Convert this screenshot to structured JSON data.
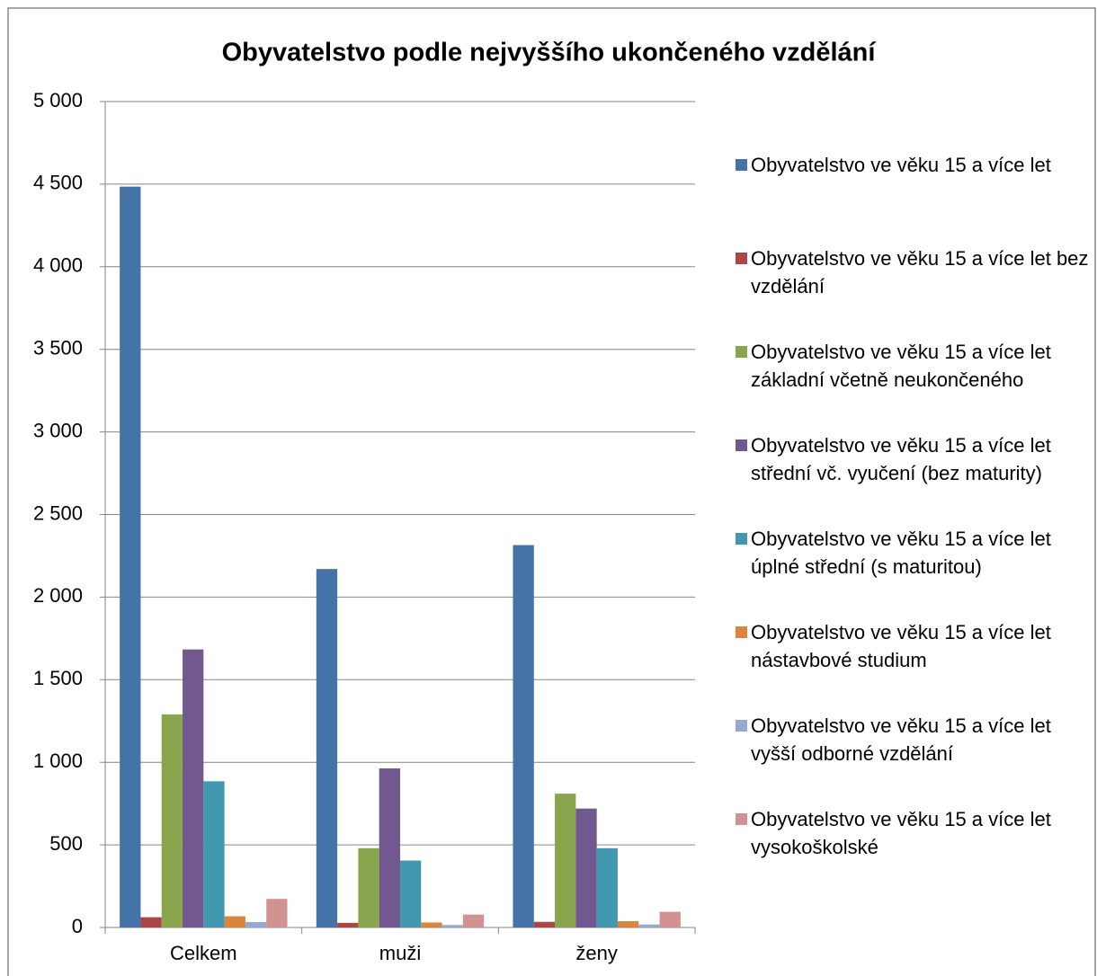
{
  "chart_data": {
    "type": "bar",
    "title": "Obyvatelstvo podle nejvyššího ukončeného vzdělání",
    "categories": [
      "Celkem",
      "muži",
      "ženy"
    ],
    "series": [
      {
        "name": "Obyvatelstvo ve věku 15 a více let",
        "color": "#4572a7",
        "values": [
          4485,
          2170,
          2315
        ]
      },
      {
        "name": "Obyvatelstvo ve věku 15 a více let bez vzdělání",
        "color": "#aa4643",
        "values": [
          62,
          28,
          34
        ]
      },
      {
        "name": "Obyvatelstvo ve věku 15 a více let základní včetně neukončeného",
        "color": "#89a54e",
        "values": [
          1290,
          480,
          810
        ]
      },
      {
        "name": "Obyvatelstvo ve věku 15 a více let střední vč. vyučení (bez maturity)",
        "color": "#71588f",
        "values": [
          1683,
          963,
          720
        ]
      },
      {
        "name": "Obyvatelstvo ve věku 15 a více let úplné střední (s maturitou)",
        "color": "#4198af",
        "values": [
          885,
          405,
          480
        ]
      },
      {
        "name": "Obyvatelstvo ve věku 15 a více let nástavbové studium",
        "color": "#db843d",
        "values": [
          68,
          30,
          38
        ]
      },
      {
        "name": "Obyvatelstvo ve věku 15 a více let vyšší odborné vzdělání",
        "color": "#93a9cf",
        "values": [
          33,
          15,
          18
        ]
      },
      {
        "name": "Obyvatelstvo ve věku 15 a více let vysokoškolské",
        "color": "#d19392",
        "values": [
          173,
          78,
          95
        ]
      }
    ],
    "ylim": [
      0,
      5000
    ],
    "yticks": [
      0,
      {
        "value": 500,
        "label": "500"
      },
      {
        "value": 1000,
        "label": "1 000"
      },
      {
        "value": 1500,
        "label": "1 500"
      },
      {
        "value": 2000,
        "label": "2 000"
      },
      {
        "value": 2500,
        "label": "2 500"
      },
      {
        "value": 3000,
        "label": "3 000"
      },
      {
        "value": 3500,
        "label": "3 500"
      },
      {
        "value": 4000,
        "label": "4 000"
      },
      {
        "value": 4500,
        "label": "4 500"
      },
      {
        "value": 5000,
        "label": "5 000"
      }
    ],
    "grid": true,
    "legend": "right"
  }
}
